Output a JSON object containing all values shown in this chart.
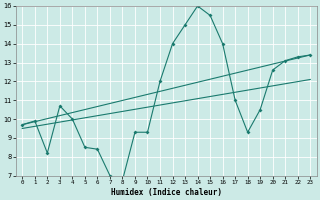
{
  "xlabel": "Humidex (Indice chaleur)",
  "bg_color": "#cceae6",
  "grid_color": "#ffffff",
  "line_color": "#1a7a6e",
  "xlim": [
    -0.5,
    23.5
  ],
  "ylim": [
    7,
    16
  ],
  "xticks": [
    0,
    1,
    2,
    3,
    4,
    5,
    6,
    7,
    8,
    9,
    10,
    11,
    12,
    13,
    14,
    15,
    16,
    17,
    18,
    19,
    20,
    21,
    22,
    23
  ],
  "yticks": [
    7,
    8,
    9,
    10,
    11,
    12,
    13,
    14,
    15,
    16
  ],
  "line1_x": [
    0,
    1,
    2,
    3,
    4,
    5,
    6,
    7,
    8,
    9,
    10,
    11,
    12,
    13,
    14,
    15,
    16,
    17,
    18,
    19,
    20,
    21,
    22,
    23
  ],
  "line1_y": [
    9.7,
    9.9,
    8.2,
    10.7,
    10.0,
    8.5,
    8.4,
    7.0,
    6.75,
    9.3,
    9.3,
    12.0,
    14.0,
    15.0,
    16.0,
    15.5,
    14.0,
    11.0,
    9.3,
    10.5,
    12.6,
    13.1,
    13.3,
    13.4
  ],
  "line2_x": [
    0,
    23
  ],
  "line2_y": [
    9.7,
    13.4
  ],
  "line3_x": [
    0,
    23
  ],
  "line3_y": [
    9.5,
    12.1
  ]
}
